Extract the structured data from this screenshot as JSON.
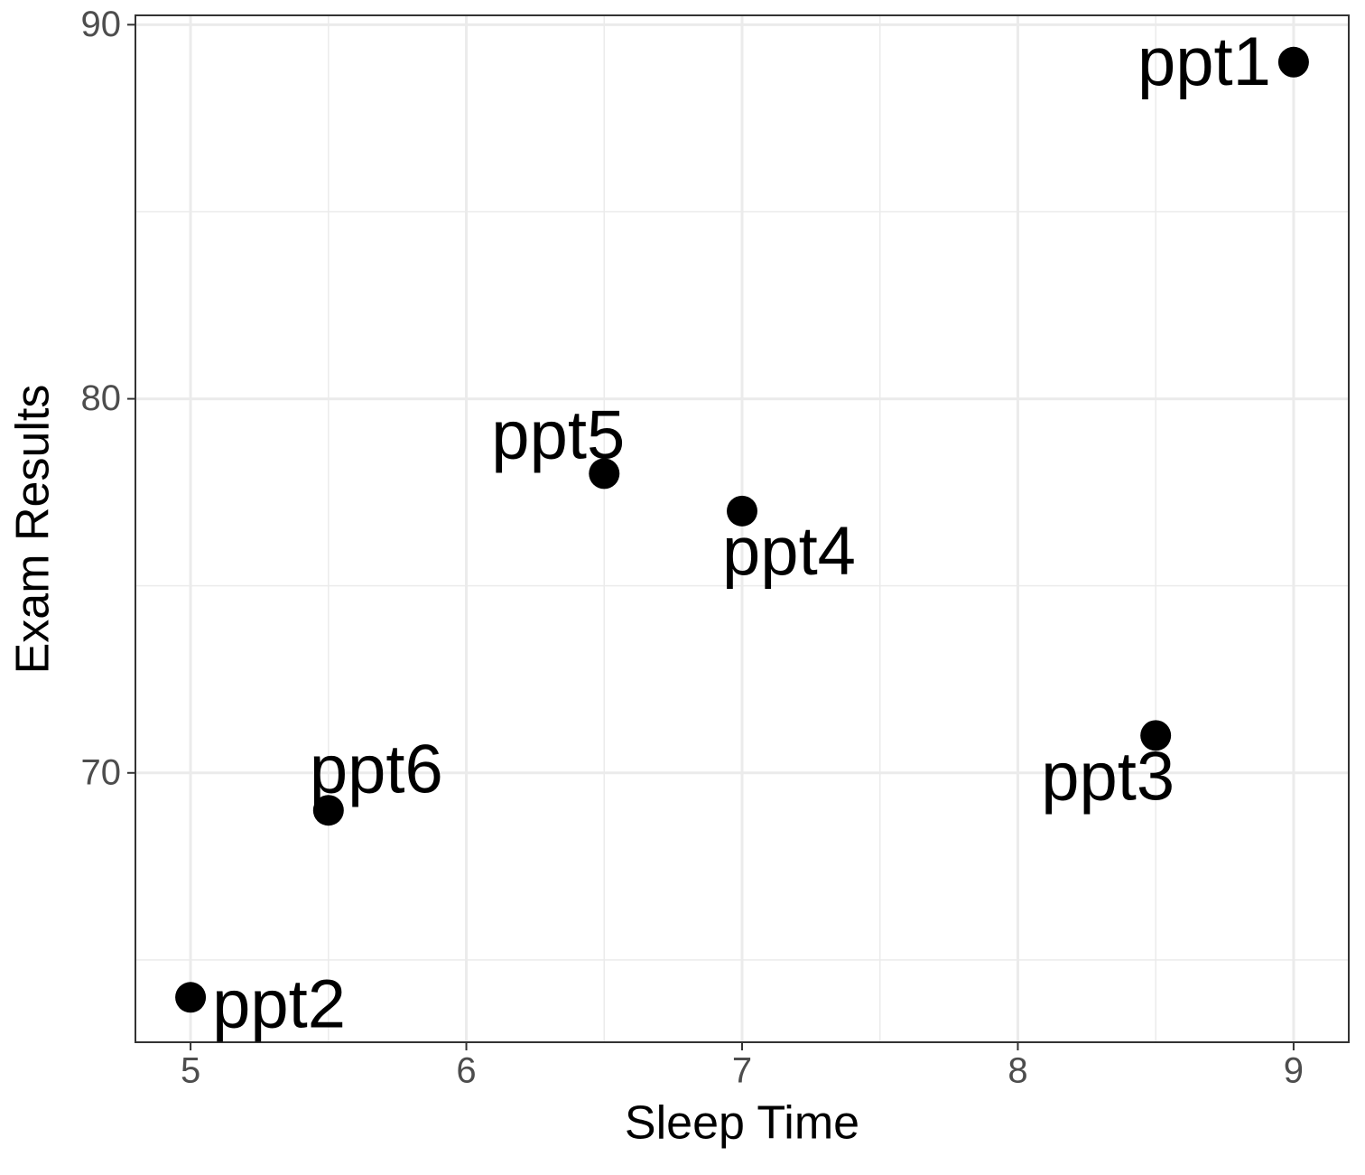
{
  "chart_data": {
    "type": "scatter",
    "x_label": "Sleep Time",
    "y_label": "Exam Results",
    "x": [
      9,
      5,
      8.5,
      7,
      6.5,
      5.5
    ],
    "series": [
      {
        "values": [
          89,
          64,
          71,
          77,
          78,
          69
        ],
        "color": "#000000",
        "point_labels": [
          "ppt1",
          "ppt2",
          "ppt3",
          "ppt4",
          "ppt5",
          "ppt6"
        ]
      }
    ],
    "xlim": [
      4.8,
      9.2
    ],
    "ylim": [
      62.8,
      90.25
    ],
    "xticks": [
      5,
      6,
      7,
      8,
      9
    ],
    "yticks": [
      70,
      80,
      90
    ],
    "x_minor_ticks": [
      5.5,
      6.5,
      7.5,
      8.5
    ],
    "y_minor_ticks": [
      65,
      75,
      85
    ],
    "grid": true
  }
}
